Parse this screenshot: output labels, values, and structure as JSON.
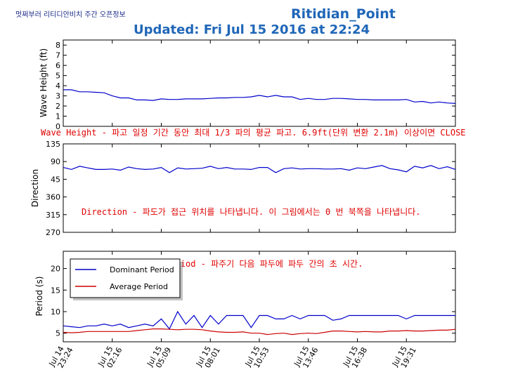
{
  "header": {
    "site_label": "멋쩌부러 리티디안비치 주간 오픈정보",
    "station": "Ritidian_Point",
    "updated": "Updated:  Fri Jul 15 2016 at 22:24"
  },
  "colors": {
    "dominant": "#0000cc",
    "average": "#cc0000",
    "annotation": "#e00000",
    "header": "#1f66b8"
  },
  "chart_data": [
    {
      "type": "line",
      "title": "",
      "ylabel": "Wave Height (ft)",
      "ylim": [
        0,
        8.5
      ],
      "yticks": [
        "0",
        "1",
        "2",
        "3",
        "4",
        "5",
        "6",
        "7",
        "8"
      ],
      "grid": false,
      "annotation": "Wave Height - 파고 일정 기간 동안 최대 1/3 파의 평균 파고. 6.9ft(단위 변환 2.1m) 이상이면 CLOSE",
      "x_hours": [
        0,
        1.5,
        3,
        4.5,
        6,
        7.5,
        9,
        10.5,
        12,
        13.5,
        15,
        16.5,
        18,
        19.5,
        21,
        22.5,
        24,
        25.5,
        27,
        28.5,
        30,
        31.5,
        33,
        34.5,
        36,
        37.5,
        39,
        40.5,
        42,
        43.5,
        45,
        46.5,
        48,
        49.5,
        51,
        52.5,
        54,
        55.5,
        57,
        58.5,
        60,
        61.5,
        63,
        64.5,
        66,
        67.5,
        69,
        70.5,
        72
      ],
      "series": [
        {
          "name": "",
          "values": [
            3.6,
            3.6,
            3.4,
            3.4,
            3.35,
            3.3,
            3.0,
            2.8,
            2.8,
            2.6,
            2.6,
            2.55,
            2.7,
            2.65,
            2.65,
            2.7,
            2.7,
            2.7,
            2.75,
            2.8,
            2.8,
            2.85,
            2.85,
            2.9,
            3.05,
            2.9,
            3.05,
            2.9,
            2.9,
            2.65,
            2.75,
            2.65,
            2.65,
            2.75,
            2.75,
            2.7,
            2.65,
            2.65,
            2.6,
            2.6,
            2.6,
            2.6,
            2.65,
            2.4,
            2.45,
            2.3,
            2.4,
            2.3,
            2.25
          ]
        }
      ]
    },
    {
      "type": "line",
      "title": "",
      "ylabel": "Direction",
      "yticks": [
        "270",
        "315",
        "360",
        "45",
        "90",
        "135"
      ],
      "ylim_unwrapped": [
        270,
        495
      ],
      "grid": false,
      "annotation": "Direction - 파도가 접근 위치를 나타냅니다. 이 그림에서는 0 번 북쪽을 나타냅니다.",
      "x_hours": [
        0,
        1.5,
        3,
        4.5,
        6,
        7.5,
        9,
        10.5,
        12,
        13.5,
        15,
        16.5,
        18,
        19.5,
        21,
        22.5,
        24,
        25.5,
        27,
        28.5,
        30,
        31.5,
        33,
        34.5,
        36,
        37.5,
        39,
        40.5,
        42,
        43.5,
        45,
        46.5,
        48,
        49.5,
        51,
        52.5,
        54,
        55.5,
        57,
        58.5,
        60,
        61.5,
        63,
        64.5,
        66,
        67.5,
        69,
        70.5,
        72
      ],
      "series": [
        {
          "name": "",
          "values": [
            75,
            70,
            78,
            74,
            70,
            70,
            71,
            68,
            76,
            72,
            70,
            71,
            75,
            62,
            74,
            71,
            72,
            73,
            78,
            72,
            75,
            71,
            71,
            70,
            75,
            75,
            62,
            72,
            74,
            71,
            72,
            72,
            71,
            71,
            72,
            68,
            74,
            72,
            76,
            80,
            72,
            69,
            64,
            78,
            74,
            80,
            72,
            77,
            70
          ]
        }
      ]
    },
    {
      "type": "line",
      "title": "",
      "ylabel": "Period (s)",
      "ylim": [
        3,
        24
      ],
      "yticks": [
        "5",
        "10",
        "15",
        "20"
      ],
      "grid": false,
      "legend": "top-left",
      "annotation": "Wave Period - 파주기 다음 파두에 파두 간의 초 시간.",
      "x_hours": [
        0,
        1.5,
        3,
        4.5,
        6,
        7.5,
        9,
        10.5,
        12,
        13.5,
        15,
        16.5,
        18,
        19.5,
        21,
        22.5,
        24,
        25.5,
        27,
        28.5,
        30,
        31.5,
        33,
        34.5,
        36,
        37.5,
        39,
        40.5,
        42,
        43.5,
        45,
        46.5,
        48,
        49.5,
        51,
        52.5,
        54,
        55.5,
        57,
        58.5,
        60,
        61.5,
        63,
        64.5,
        66,
        67.5,
        69,
        70.5,
        72
      ],
      "series": [
        {
          "name": "Dominant Period",
          "values": [
            6.7,
            6.5,
            6.3,
            6.7,
            6.7,
            7.1,
            6.7,
            7.1,
            6.3,
            6.7,
            7.1,
            6.7,
            8.3,
            6.0,
            10.0,
            7.1,
            9.1,
            6.3,
            9.1,
            7.1,
            9.1,
            9.1,
            9.1,
            6.3,
            9.1,
            9.1,
            8.3,
            8.3,
            9.1,
            8.3,
            9.1,
            9.1,
            9.1,
            8.0,
            8.3,
            9.1,
            9.1,
            9.1,
            9.1,
            9.1,
            9.1,
            9.1,
            8.3,
            9.1,
            9.1,
            9.1,
            9.1,
            9.1,
            9.1
          ]
        },
        {
          "name": "Average Period",
          "values": [
            5.2,
            5.1,
            5.2,
            5.4,
            5.4,
            5.4,
            5.4,
            5.4,
            5.4,
            5.6,
            5.8,
            6.0,
            6.0,
            5.9,
            5.8,
            5.9,
            5.9,
            5.8,
            5.5,
            5.3,
            5.2,
            5.2,
            5.3,
            5.0,
            5.0,
            4.7,
            4.9,
            5.0,
            4.7,
            4.9,
            5.0,
            4.9,
            5.2,
            5.5,
            5.5,
            5.4,
            5.3,
            5.4,
            5.3,
            5.3,
            5.5,
            5.5,
            5.6,
            5.5,
            5.5,
            5.6,
            5.7,
            5.7,
            5.9
          ]
        }
      ]
    }
  ],
  "x_axis": {
    "ticks": [
      {
        "hour": 0,
        "l1": "Jul 14",
        "l2": "23:24"
      },
      {
        "hour": 9,
        "l1": "Jul 15",
        "l2": "02:16"
      },
      {
        "hour": 18,
        "l1": "Jul 15",
        "l2": "05:09"
      },
      {
        "hour": 27,
        "l1": "Jul 15",
        "l2": "08:01"
      },
      {
        "hour": 36,
        "l1": "Jul 15",
        "l2": "10:53"
      },
      {
        "hour": 45,
        "l1": "Jul 15",
        "l2": "13:46"
      },
      {
        "hour": 54,
        "l1": "Jul 15",
        "l2": "16:38"
      },
      {
        "hour": 63,
        "l1": "Jul 15",
        "l2": "19:31"
      }
    ],
    "xlim": [
      0,
      72
    ]
  }
}
